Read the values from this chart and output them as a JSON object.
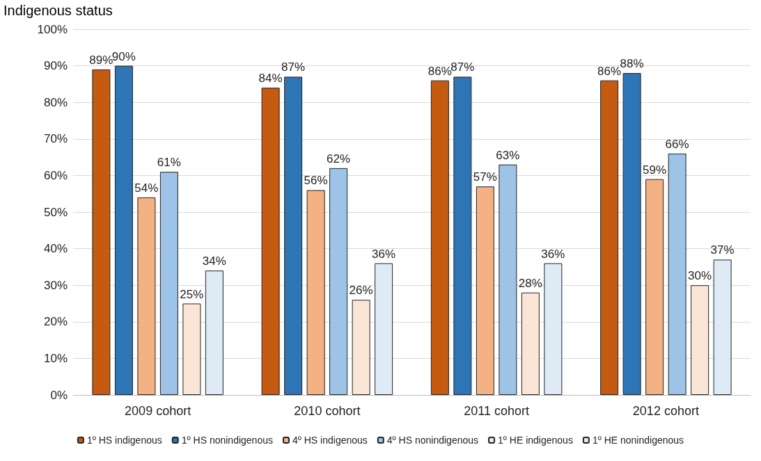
{
  "chart_data": {
    "type": "bar",
    "title": "Indigenous status",
    "categories": [
      "2009 cohort",
      "2010 cohort",
      "2011 cohort",
      "2012 cohort"
    ],
    "series": [
      {
        "name": "1º HS indigenous",
        "color": "#c55a11",
        "values": [
          89,
          84,
          86,
          86
        ],
        "value_labels": [
          "89%",
          "84%",
          "86%",
          "86%"
        ]
      },
      {
        "name": "1º HS nonindigenous",
        "color": "#2e75b6",
        "values": [
          90,
          87,
          87,
          88
        ],
        "value_labels": [
          "90%",
          "87%",
          "87%",
          "88%"
        ]
      },
      {
        "name": "4º HS indigenous",
        "color": "#f4b183",
        "values": [
          54,
          56,
          57,
          59
        ],
        "value_labels": [
          "54%",
          "56%",
          "57%",
          "59%"
        ]
      },
      {
        "name": "4º HS nonindigenous",
        "color": "#9dc3e6",
        "values": [
          61,
          62,
          63,
          66
        ],
        "value_labels": [
          "61%",
          "62%",
          "63%",
          "66%"
        ]
      },
      {
        "name": "1º HE indigenous",
        "color": "#fbe5d6",
        "values": [
          25,
          26,
          28,
          30
        ],
        "value_labels": [
          "25%",
          "26%",
          "28%",
          "30%"
        ]
      },
      {
        "name": "1º HE nonindigenous",
        "color": "#deebf7",
        "values": [
          34,
          36,
          36,
          37
        ],
        "value_labels": [
          "34%",
          "36%",
          "36%",
          "37%"
        ]
      }
    ],
    "ylim": [
      0,
      100
    ],
    "yticks": [
      {
        "value": 0,
        "label": "0%"
      },
      {
        "value": 10,
        "label": "10%"
      },
      {
        "value": 20,
        "label": "20%"
      },
      {
        "value": 30,
        "label": "30%"
      },
      {
        "value": 40,
        "label": "40%"
      },
      {
        "value": 50,
        "label": "50%"
      },
      {
        "value": 60,
        "label": "60%"
      },
      {
        "value": 70,
        "label": "70%"
      },
      {
        "value": 80,
        "label": "80%"
      },
      {
        "value": 90,
        "label": "90%"
      },
      {
        "value": 100,
        "label": "100%"
      }
    ],
    "grid": "y",
    "legend": "bottom"
  }
}
